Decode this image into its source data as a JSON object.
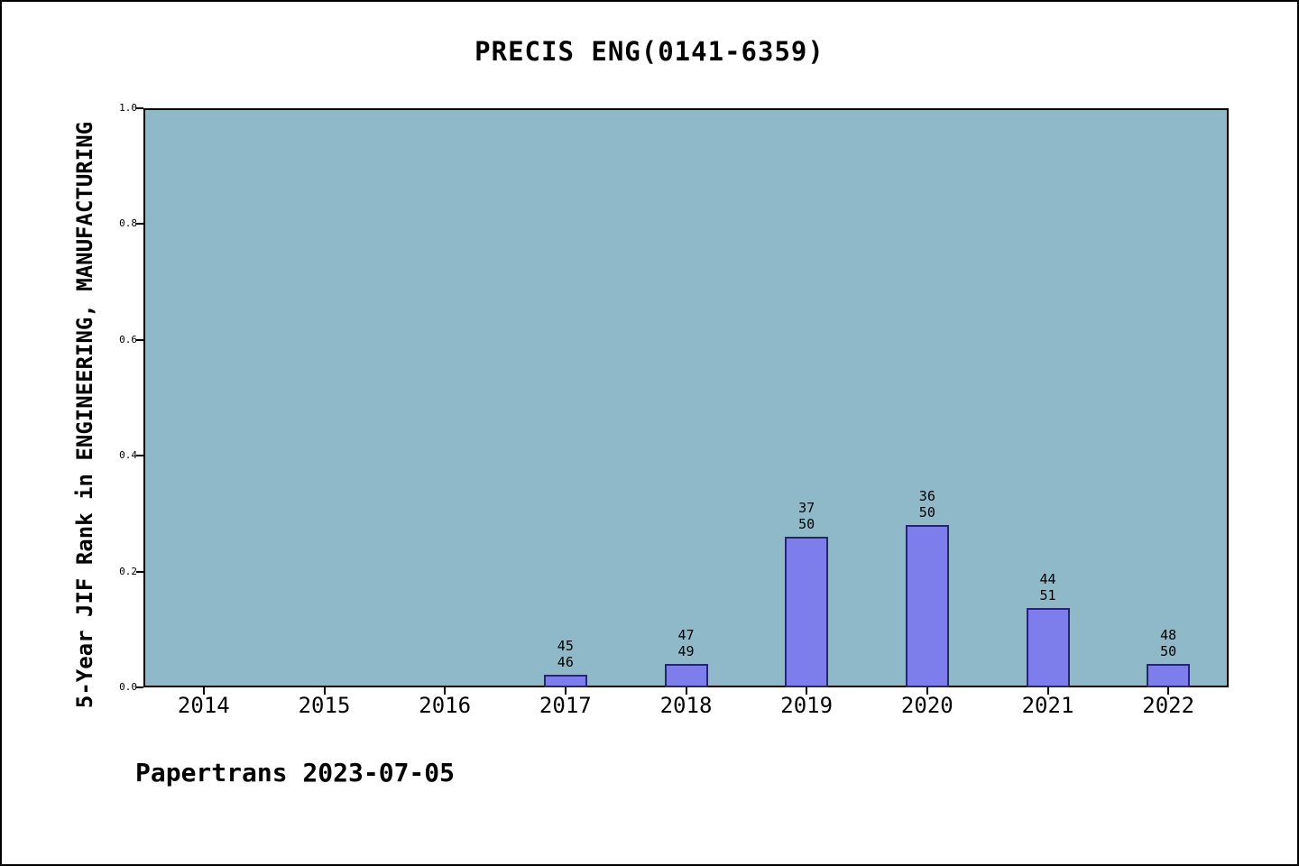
{
  "chart": {
    "title": "PRECIS ENG(0141-6359)",
    "ylabel": "5-Year JIF Rank in ENGINEERING, MANUFACTURING"
  },
  "footer": {
    "text": "Papertrans 2023-07-05"
  },
  "chart_data": {
    "type": "bar",
    "title": "PRECIS ENG(0141-6359)",
    "ylabel": "5-Year JIF Rank in ENGINEERING, MANUFACTURING",
    "xlabel": "",
    "categories": [
      "2014",
      "2015",
      "2016",
      "2017",
      "2018",
      "2019",
      "2020",
      "2021",
      "2022"
    ],
    "values": [
      null,
      null,
      null,
      0.0217,
      0.0408,
      0.26,
      0.28,
      0.1373,
      0.04
    ],
    "ranks": [
      null,
      null,
      null,
      45,
      47,
      37,
      36,
      44,
      48
    ],
    "totals": [
      null,
      null,
      null,
      46,
      49,
      50,
      50,
      51,
      50
    ],
    "ylim": [
      0.0,
      1.0
    ],
    "yticks": [
      0.0,
      0.2,
      0.4,
      0.6,
      0.8,
      1.0
    ],
    "grid": false,
    "legend_position": "none",
    "plot_bg_color": "#8fb8c8",
    "bar_color": "#7d7dec",
    "bar_edge_color": "#26266e",
    "annotation": "Papertrans 2023-07-05"
  }
}
